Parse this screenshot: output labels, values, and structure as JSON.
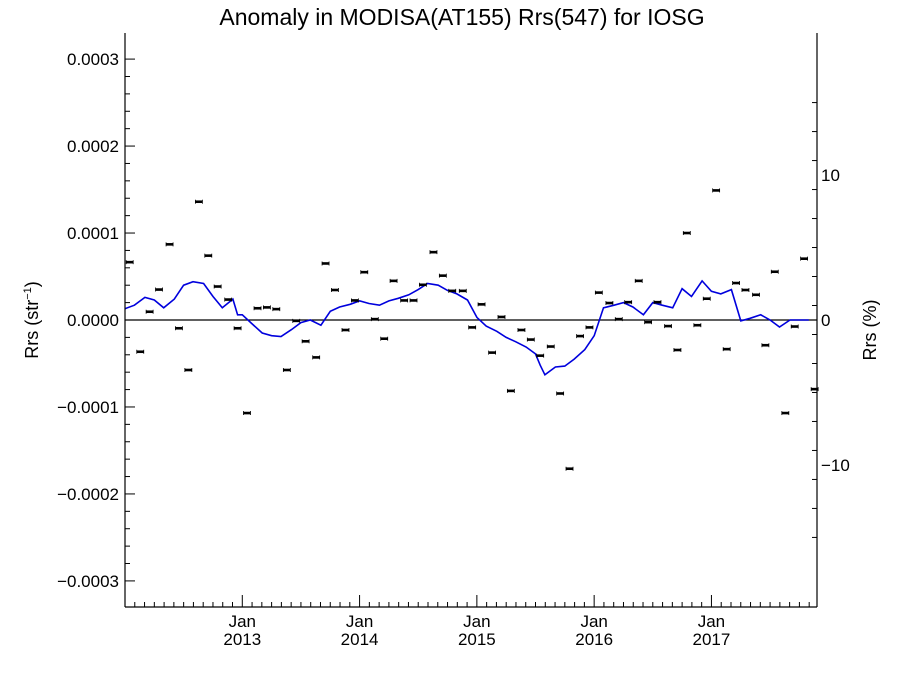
{
  "chart_data": {
    "type": "scatter",
    "title": "Anomaly in MODISA(AT155) Rrs(547) for IOSG",
    "ylabel_base": "Rrs (str",
    "ylabel_sup": "−1",
    "ylabel_close": ")",
    "y2label": "Rrs (%)",
    "xlim": [
      2012.0,
      2017.9
    ],
    "ylim": [
      -0.00033,
      0.00033
    ],
    "y2lim": [
      -19.8,
      19.8
    ],
    "yticks": [
      {
        "value": 0.0003,
        "label": "0.0003"
      },
      {
        "value": 0.0002,
        "label": "0.0002"
      },
      {
        "value": 0.0001,
        "label": "0.0001"
      },
      {
        "value": 0.0,
        "label": "0.0000"
      },
      {
        "value": -0.0001,
        "label": "−0.0001"
      },
      {
        "value": -0.0002,
        "label": "−0.0002"
      },
      {
        "value": -0.0003,
        "label": "−0.0003"
      }
    ],
    "y2ticks": [
      {
        "value": 10,
        "label": "10"
      },
      {
        "value": 0,
        "label": "0"
      },
      {
        "value": -10,
        "label": "−10"
      }
    ],
    "xticks": [
      {
        "value": 2013.0,
        "month": "Jan",
        "year": "2013"
      },
      {
        "value": 2014.0,
        "month": "Jan",
        "year": "2014"
      },
      {
        "value": 2015.0,
        "month": "Jan",
        "year": "2015"
      },
      {
        "value": 2016.0,
        "month": "Jan",
        "year": "2016"
      },
      {
        "value": 2017.0,
        "month": "Jan",
        "year": "2017"
      }
    ],
    "grid": false,
    "zero_line": true,
    "colors": {
      "points": "#000000",
      "line": "#0000dd",
      "axis": "#000000"
    },
    "monthly_points": {
      "x": [
        2012.04,
        2012.13,
        2012.21,
        2012.29,
        2012.38,
        2012.46,
        2012.54,
        2012.63,
        2012.71,
        2012.79,
        2012.88,
        2012.96,
        2013.04,
        2013.13,
        2013.21,
        2013.29,
        2013.38,
        2013.46,
        2013.54,
        2013.63,
        2013.71,
        2013.79,
        2013.88,
        2013.96,
        2014.04,
        2014.13,
        2014.21,
        2014.29,
        2014.38,
        2014.46,
        2014.54,
        2014.63,
        2014.71,
        2014.79,
        2014.88,
        2014.96,
        2015.04,
        2015.13,
        2015.21,
        2015.29,
        2015.38,
        2015.46,
        2015.54,
        2015.63,
        2015.71,
        2015.79,
        2015.88,
        2015.96,
        2016.04,
        2016.13,
        2016.21,
        2016.29,
        2016.38,
        2016.46,
        2016.54,
        2016.63,
        2016.71,
        2016.79,
        2016.88,
        2016.96,
        2017.04,
        2017.13,
        2017.21,
        2017.29,
        2017.38,
        2017.46,
        2017.54,
        2017.63,
        2017.71,
        2017.79,
        2017.88
      ],
      "y": [
        6.65e-05,
        -3.65e-05,
        9.5e-06,
        3.5e-05,
        8.7e-05,
        -9.5e-06,
        -5.75e-05,
        0.000136,
        7.4e-05,
        3.85e-05,
        2.35e-05,
        -9.5e-06,
        -0.000107,
        1.35e-05,
        1.45e-05,
        1.25e-05,
        -5.75e-05,
        -1e-06,
        -2.45e-05,
        -4.3e-05,
        6.5e-05,
        3.45e-05,
        -1.15e-05,
        2.25e-05,
        5.5e-05,
        1e-06,
        -2.15e-05,
        4.5e-05,
        2.25e-05,
        2.25e-05,
        4.05e-05,
        7.8e-05,
        5.1e-05,
        3.35e-05,
        3.35e-05,
        -8.5e-06,
        1.8e-05,
        -3.75e-05,
        3.5e-06,
        -8.15e-05,
        -1.15e-05,
        -2.25e-05,
        -4.1e-05,
        -3.05e-05,
        -8.45e-05,
        -0.000171,
        -1.85e-05,
        -8.5e-06,
        3.15e-05,
        1.95e-05,
        1e-06,
        2.05e-05,
        4.5e-05,
        -2.5e-06,
        2.05e-05,
        -7e-06,
        -3.45e-05,
        0.0001,
        -6e-06,
        2.45e-05,
        0.000149,
        -3.35e-05,
        4.25e-05,
        3.45e-05,
        2.9e-05,
        -2.9e-05,
        5.55e-05,
        -0.000107,
        -7.5e-06,
        7.05e-05,
        -7.95e-05
      ]
    },
    "trend_line": {
      "x": [
        2012.0,
        2012.08,
        2012.17,
        2012.25,
        2012.33,
        2012.42,
        2012.5,
        2012.58,
        2012.67,
        2012.75,
        2012.83,
        2012.92,
        2012.96,
        2013.0,
        2013.08,
        2013.17,
        2013.25,
        2013.33,
        2013.42,
        2013.5,
        2013.58,
        2013.67,
        2013.75,
        2013.83,
        2013.92,
        2014.0,
        2014.08,
        2014.17,
        2014.25,
        2014.33,
        2014.42,
        2014.5,
        2014.58,
        2014.67,
        2014.75,
        2014.83,
        2014.92,
        2015.0,
        2015.08,
        2015.17,
        2015.25,
        2015.33,
        2015.42,
        2015.5,
        2015.54,
        2015.58,
        2015.67,
        2015.75,
        2015.83,
        2015.92,
        2016.0,
        2016.08,
        2016.17,
        2016.25,
        2016.33,
        2016.42,
        2016.5,
        2016.58,
        2016.67,
        2016.75,
        2016.83,
        2016.92,
        2017.0,
        2017.08,
        2017.17,
        2017.25,
        2017.33,
        2017.42,
        2017.5,
        2017.58,
        2017.67,
        2017.75,
        2017.83
      ],
      "y": [
        1.3e-05,
        1.7e-05,
        2.6e-05,
        2.3e-05,
        1.4e-05,
        2.4e-05,
        4e-05,
        4.4e-05,
        4.2e-05,
        2.7e-05,
        1.4e-05,
        2.4e-05,
        6e-06,
        6e-06,
        -4e-06,
        -1.5e-05,
        -1.8e-05,
        -1.9e-05,
        -1.1e-05,
        -3e-06,
        0.0,
        -6e-06,
        1e-05,
        1.5e-05,
        1.8e-05,
        2.2e-05,
        1.9e-05,
        1.7e-05,
        2.2e-05,
        2.5e-05,
        2.9e-05,
        3.5e-05,
        4.2e-05,
        4e-05,
        3.4e-05,
        3e-05,
        2.3e-05,
        3e-06,
        -7e-06,
        -1.3e-05,
        -2e-05,
        -2.5e-05,
        -3.1e-05,
        -3.9e-05,
        -5.2e-05,
        -6.3e-05,
        -5.4e-05,
        -5.3e-05,
        -4.5e-05,
        -3.4e-05,
        -1.8e-05,
        1.4e-05,
        1.7e-05,
        2e-05,
        1.5e-05,
        6e-06,
        2e-05,
        1.7e-05,
        1.4e-05,
        3.6e-05,
        2.7e-05,
        4.5e-05,
        3.3e-05,
        3e-05,
        3.5e-05,
        -1e-06,
        2e-06,
        6e-06,
        0.0,
        -8e-06,
        0.0,
        0.0,
        0.0
      ]
    }
  }
}
